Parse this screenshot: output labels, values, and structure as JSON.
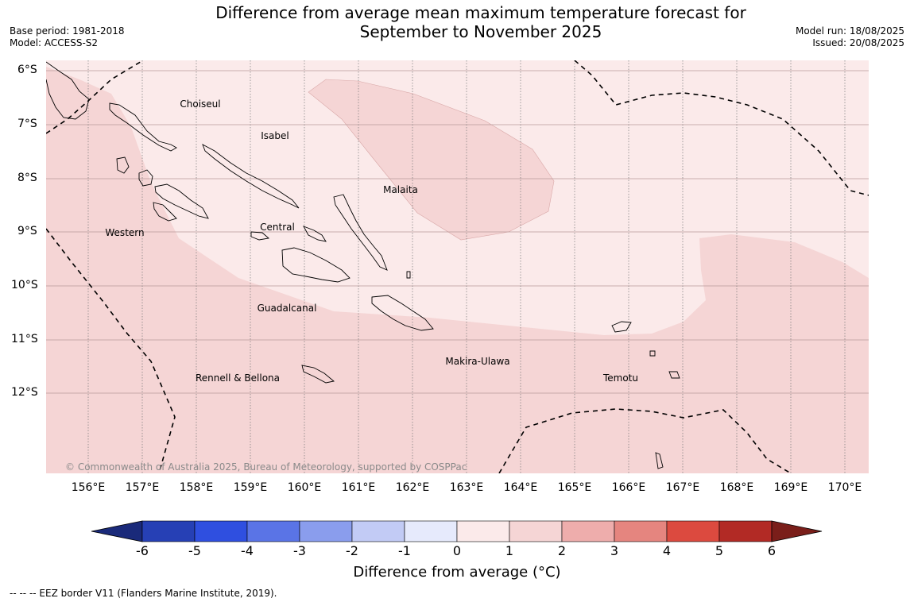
{
  "title": {
    "line1": "Difference from average mean maximum temperature forecast for",
    "line2": "September to November 2025"
  },
  "meta": {
    "base_period": "Base period: 1981-2018",
    "model": "Model: ACCESS-S2",
    "model_run": "Model run: 18/08/2025",
    "issued": "Issued: 20/08/2025"
  },
  "lat_labels": [
    "6°S",
    "7°S",
    "8°S",
    "9°S",
    "10°S",
    "11°S",
    "12°S"
  ],
  "lon_labels": [
    "156°E",
    "157°E",
    "158°E",
    "159°E",
    "160°E",
    "161°E",
    "162°E",
    "163°E",
    "164°E",
    "165°E",
    "166°E",
    "167°E",
    "168°E",
    "169°E",
    "170°E"
  ],
  "regions": {
    "choiseul": "Choiseul",
    "isabel": "Isabel",
    "malaita": "Malaita",
    "western": "Western",
    "central": "Central",
    "guadalcanal": "Guadalcanal",
    "makira_ulawa": "Makira-Ulawa",
    "rennell_bellona": "Rennell & Bellona",
    "temotu": "Temotu"
  },
  "copyright": "© Commonwealth of Australia 2025, Bureau of Meteorology, supported by COSPPac",
  "colorbar": {
    "ticks": [
      "-6",
      "-5",
      "-4",
      "-3",
      "-2",
      "-1",
      "0",
      "1",
      "2",
      "3",
      "4",
      "5",
      "6"
    ],
    "colors": [
      "#1a2a7a",
      "#2640b5",
      "#2f4fe0",
      "#5a74e6",
      "#8a9ded",
      "#c2cbf5",
      "#e6eafc",
      "#fbeaea",
      "#f5d5d5",
      "#eeadac",
      "#e5857f",
      "#dc4a3f",
      "#b22a25",
      "#7a1e1a"
    ],
    "title": "Difference from average (°C)"
  },
  "footnote": "--  --  -- EEZ border V11 (Flanders Marine Institute, 2019)."
}
